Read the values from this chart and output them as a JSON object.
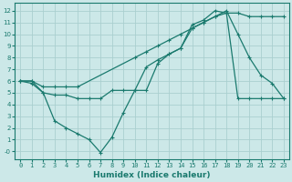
{
  "xlabel": "Humidex (Indice chaleur)",
  "bg_color": "#cce8e8",
  "grid_color": "#aacfcf",
  "line_color": "#1a7a6e",
  "xlim": [
    -0.5,
    23.5
  ],
  "ylim": [
    -0.7,
    12.7
  ],
  "xticks": [
    0,
    1,
    2,
    3,
    4,
    5,
    6,
    7,
    8,
    9,
    10,
    11,
    12,
    13,
    14,
    15,
    16,
    17,
    18,
    19,
    20,
    21,
    22,
    23
  ],
  "yticks": [
    0,
    1,
    2,
    3,
    4,
    5,
    6,
    7,
    8,
    9,
    10,
    11,
    12
  ],
  "ytick_labels": [
    "-0",
    "1",
    "2",
    "3",
    "4",
    "5",
    "6",
    "7",
    "8",
    "9",
    "10",
    "11",
    "12"
  ],
  "line1_x": [
    0,
    1,
    2,
    3,
    4,
    5,
    10,
    11,
    12,
    13,
    14,
    15,
    16,
    17,
    18,
    19,
    20,
    21,
    22,
    23
  ],
  "line1_y": [
    6.0,
    6.0,
    5.5,
    5.5,
    5.5,
    5.5,
    8.0,
    8.5,
    9.0,
    9.5,
    10.0,
    10.5,
    11.0,
    11.5,
    11.8,
    11.8,
    11.5,
    11.5,
    11.5,
    11.5
  ],
  "line2_x": [
    0,
    1,
    2,
    3,
    4,
    5,
    6,
    7,
    8,
    9,
    10,
    11,
    12,
    13,
    14,
    15,
    16,
    17,
    18,
    19,
    20,
    21,
    22,
    23
  ],
  "line2_y": [
    6.0,
    6.0,
    5.0,
    4.8,
    4.8,
    4.5,
    4.5,
    4.5,
    5.2,
    5.2,
    5.2,
    5.2,
    7.5,
    8.3,
    8.8,
    10.8,
    11.2,
    12.0,
    11.8,
    4.5,
    4.5,
    4.5,
    4.5,
    4.5
  ],
  "line3_x": [
    0,
    1,
    2,
    3,
    4,
    5,
    6,
    7,
    8,
    9,
    10,
    11,
    12,
    13,
    14,
    15,
    16,
    17,
    18,
    19,
    20,
    21,
    22,
    23
  ],
  "line3_y": [
    6.0,
    5.8,
    5.0,
    2.6,
    2.0,
    1.5,
    1.0,
    -0.1,
    1.2,
    3.3,
    5.2,
    7.2,
    7.8,
    8.3,
    8.8,
    10.5,
    11.0,
    11.5,
    12.0,
    10.0,
    8.0,
    6.5,
    5.8,
    4.5
  ]
}
